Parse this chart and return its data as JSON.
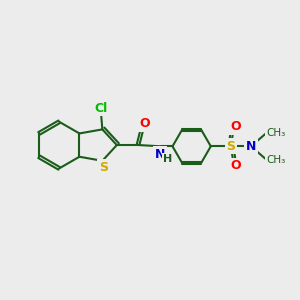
{
  "bg_color": "#ececec",
  "bond_color": "#1a5c1a",
  "bond_lw": 1.5,
  "atom_colors": {
    "Cl": "#00bb00",
    "O": "#ff0000",
    "N": "#0000cc",
    "S": "#ccaa00",
    "C": "#1a5c1a"
  },
  "figsize": [
    3.0,
    3.0
  ],
  "dpi": 100,
  "xlim": [
    0,
    12
  ],
  "ylim": [
    0,
    10
  ]
}
